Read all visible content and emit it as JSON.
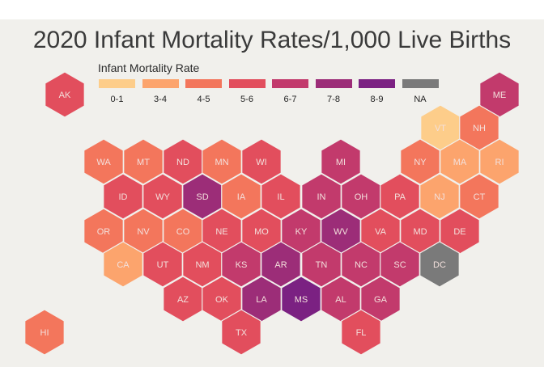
{
  "title": "2020 Infant Mortality Rates/1,000 Live Births",
  "legend": {
    "title": "Infant Mortality Rate",
    "items": [
      {
        "label": "0-1",
        "color": "#fdcd8a"
      },
      {
        "label": "3-4",
        "color": "#fca46d"
      },
      {
        "label": "4-5",
        "color": "#f3765c"
      },
      {
        "label": "5-6",
        "color": "#e24e5d"
      },
      {
        "label": "6-7",
        "color": "#c23a6c"
      },
      {
        "label": "7-8",
        "color": "#9c2d78"
      },
      {
        "label": "8-9",
        "color": "#7b2182"
      },
      {
        "label": "NA",
        "color": "#7a7a7a"
      }
    ]
  },
  "states": [
    {
      "abbr": "AK",
      "rate": "5-6"
    },
    {
      "abbr": "ME",
      "rate": "6-7"
    },
    {
      "abbr": "VT",
      "rate": "0-1"
    },
    {
      "abbr": "NH",
      "rate": "4-5"
    },
    {
      "abbr": "WA",
      "rate": "4-5"
    },
    {
      "abbr": "MT",
      "rate": "4-5"
    },
    {
      "abbr": "ND",
      "rate": "5-6"
    },
    {
      "abbr": "MN",
      "rate": "4-5"
    },
    {
      "abbr": "WI",
      "rate": "5-6"
    },
    {
      "abbr": "MI",
      "rate": "6-7"
    },
    {
      "abbr": "NY",
      "rate": "4-5"
    },
    {
      "abbr": "MA",
      "rate": "3-4"
    },
    {
      "abbr": "RI",
      "rate": "3-4"
    },
    {
      "abbr": "ID",
      "rate": "5-6"
    },
    {
      "abbr": "WY",
      "rate": "5-6"
    },
    {
      "abbr": "SD",
      "rate": "7-8"
    },
    {
      "abbr": "IA",
      "rate": "4-5"
    },
    {
      "abbr": "IL",
      "rate": "5-6"
    },
    {
      "abbr": "IN",
      "rate": "6-7"
    },
    {
      "abbr": "OH",
      "rate": "6-7"
    },
    {
      "abbr": "PA",
      "rate": "5-6"
    },
    {
      "abbr": "NJ",
      "rate": "3-4"
    },
    {
      "abbr": "CT",
      "rate": "4-5"
    },
    {
      "abbr": "OR",
      "rate": "4-5"
    },
    {
      "abbr": "NV",
      "rate": "4-5"
    },
    {
      "abbr": "CO",
      "rate": "4-5"
    },
    {
      "abbr": "NE",
      "rate": "5-6"
    },
    {
      "abbr": "MO",
      "rate": "5-6"
    },
    {
      "abbr": "KY",
      "rate": "6-7"
    },
    {
      "abbr": "WV",
      "rate": "7-8"
    },
    {
      "abbr": "VA",
      "rate": "5-6"
    },
    {
      "abbr": "MD",
      "rate": "5-6"
    },
    {
      "abbr": "DE",
      "rate": "5-6"
    },
    {
      "abbr": "CA",
      "rate": "3-4"
    },
    {
      "abbr": "UT",
      "rate": "5-6"
    },
    {
      "abbr": "NM",
      "rate": "5-6"
    },
    {
      "abbr": "KS",
      "rate": "6-7"
    },
    {
      "abbr": "AR",
      "rate": "7-8"
    },
    {
      "abbr": "TN",
      "rate": "6-7"
    },
    {
      "abbr": "NC",
      "rate": "6-7"
    },
    {
      "abbr": "SC",
      "rate": "6-7"
    },
    {
      "abbr": "DC",
      "rate": "NA"
    },
    {
      "abbr": "AZ",
      "rate": "5-6"
    },
    {
      "abbr": "OK",
      "rate": "5-6"
    },
    {
      "abbr": "LA",
      "rate": "7-8"
    },
    {
      "abbr": "MS",
      "rate": "8-9"
    },
    {
      "abbr": "AL",
      "rate": "6-7"
    },
    {
      "abbr": "GA",
      "rate": "6-7"
    },
    {
      "abbr": "HI",
      "rate": "4-5"
    },
    {
      "abbr": "TX",
      "rate": "5-6"
    },
    {
      "abbr": "FL",
      "rate": "5-6"
    }
  ]
}
